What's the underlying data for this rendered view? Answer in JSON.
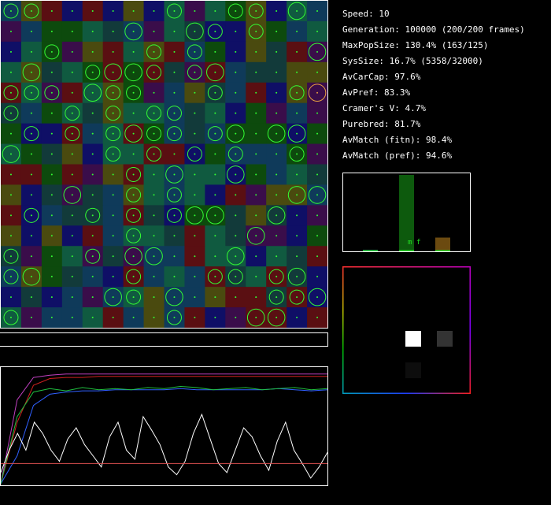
{
  "stats": [
    {
      "label": "Speed",
      "value": "10"
    },
    {
      "label": "Generation",
      "value": "100000 (200/200 frames)"
    },
    {
      "label": "MaxPopSize",
      "value": "130.4% (163/125)"
    },
    {
      "label": "SysSize",
      "value": "16.7% (5358/32000)"
    },
    {
      "label": "AvCarCap",
      "value": "97.6%"
    },
    {
      "label": "AvPref",
      "value": "83.3%"
    },
    {
      "label": "Cramer's V",
      "value": "4.7%"
    },
    {
      "label": "Purebred",
      "value": "81.7%"
    },
    {
      "label": "AvMatch (fitn)",
      "value": "98.4%"
    },
    {
      "label": "AvMatch (pref)",
      "value": "94.6%"
    }
  ],
  "histogram": {
    "label_m": "m",
    "label_f": "f",
    "bars": [
      {
        "category": 1,
        "value": 0.02,
        "color": "#223388"
      },
      {
        "category": 3,
        "value": 1.0,
        "color": "#0d5a0d"
      },
      {
        "category": 5,
        "value": 0.18,
        "color": "#6b4a10"
      }
    ],
    "accent_color": "#22dd22"
  },
  "matrix": {
    "cells": [
      {
        "row": 0,
        "col": 0,
        "value": 1.0
      },
      {
        "row": 0,
        "col": 1,
        "value": 0.2
      },
      {
        "row": 1,
        "col": 0,
        "value": 0.05
      }
    ]
  },
  "grid": {
    "rows": 16,
    "cols": 16,
    "palette": [
      "#0f0f66",
      "#3a0d4a",
      "#105a40",
      "#4a4a0f",
      "#5a0f12",
      "#0d4a0d",
      "#0f3a5a",
      "#123a3a"
    ],
    "cell_color_index": [
      [
        6,
        3,
        4,
        0,
        4,
        0,
        3,
        0,
        2,
        1,
        2,
        5,
        3,
        0,
        2,
        6
      ],
      [
        1,
        6,
        5,
        5,
        2,
        7,
        6,
        1,
        2,
        7,
        0,
        0,
        3,
        5,
        6,
        2
      ],
      [
        0,
        2,
        5,
        1,
        3,
        4,
        2,
        3,
        4,
        6,
        5,
        0,
        3,
        7,
        4,
        1
      ],
      [
        2,
        3,
        7,
        2,
        5,
        4,
        5,
        4,
        7,
        1,
        4,
        6,
        7,
        7,
        3,
        3
      ],
      [
        4,
        2,
        1,
        4,
        2,
        3,
        5,
        1,
        6,
        3,
        7,
        6,
        4,
        0,
        3,
        1
      ],
      [
        7,
        6,
        5,
        2,
        7,
        3,
        2,
        2,
        6,
        7,
        2,
        0,
        5,
        1,
        6,
        1
      ],
      [
        5,
        0,
        0,
        4,
        6,
        2,
        4,
        5,
        6,
        7,
        6,
        5,
        5,
        5,
        0,
        5
      ],
      [
        2,
        5,
        7,
        3,
        0,
        2,
        2,
        4,
        4,
        0,
        5,
        6,
        6,
        6,
        5,
        1
      ],
      [
        4,
        4,
        5,
        4,
        1,
        3,
        4,
        2,
        6,
        2,
        2,
        0,
        5,
        6,
        2,
        7
      ],
      [
        3,
        0,
        7,
        1,
        7,
        6,
        3,
        2,
        6,
        2,
        0,
        4,
        1,
        3,
        3,
        6
      ],
      [
        4,
        0,
        6,
        7,
        7,
        6,
        4,
        7,
        0,
        5,
        5,
        7,
        3,
        7,
        0,
        1
      ],
      [
        3,
        0,
        3,
        0,
        4,
        6,
        2,
        2,
        7,
        4,
        2,
        7,
        1,
        1,
        0,
        5
      ],
      [
        7,
        1,
        5,
        2,
        1,
        7,
        1,
        6,
        6,
        4,
        2,
        2,
        0,
        2,
        7,
        4
      ],
      [
        6,
        3,
        5,
        7,
        6,
        0,
        4,
        6,
        2,
        6,
        4,
        7,
        2,
        4,
        7,
        0
      ],
      [
        0,
        7,
        0,
        6,
        1,
        6,
        2,
        3,
        6,
        6,
        3,
        4,
        4,
        7,
        4,
        0
      ],
      [
        2,
        1,
        6,
        6,
        2,
        4,
        6,
        3,
        6,
        4,
        0,
        1,
        4,
        4,
        0,
        4
      ]
    ],
    "cell_value_index": [
      [
        1,
        1,
        0,
        0,
        0,
        0,
        0,
        0,
        1,
        0,
        0,
        1,
        1,
        0,
        2,
        0
      ],
      [
        0,
        0,
        0,
        0,
        0,
        0,
        2,
        0,
        0,
        2,
        1,
        0,
        1,
        0,
        0,
        0
      ],
      [
        0,
        0,
        1,
        0,
        0,
        0,
        0,
        1,
        0,
        1,
        0,
        0,
        0,
        0,
        0,
        2
      ],
      [
        0,
        2,
        0,
        0,
        1,
        2,
        2,
        1,
        0,
        1,
        2,
        0,
        0,
        0,
        0,
        0
      ],
      [
        1,
        1,
        1,
        0,
        2,
        1,
        1,
        0,
        0,
        0,
        1,
        0,
        0,
        0,
        1,
        2
      ],
      [
        1,
        0,
        0,
        1,
        0,
        1,
        0,
        1,
        1,
        0,
        0,
        0,
        0,
        0,
        0,
        0
      ],
      [
        0,
        1,
        0,
        1,
        0,
        1,
        2,
        1,
        1,
        0,
        1,
        2,
        0,
        2,
        2,
        0
      ],
      [
        2,
        0,
        0,
        0,
        0,
        1,
        0,
        1,
        0,
        1,
        0,
        1,
        0,
        0,
        1,
        0
      ],
      [
        0,
        0,
        0,
        0,
        0,
        0,
        1,
        0,
        2,
        0,
        0,
        2,
        0,
        0,
        0,
        0
      ],
      [
        0,
        0,
        0,
        2,
        0,
        0,
        1,
        0,
        1,
        0,
        0,
        0,
        0,
        0,
        2,
        2
      ],
      [
        0,
        1,
        0,
        0,
        1,
        0,
        1,
        0,
        1,
        2,
        2,
        0,
        0,
        2,
        0,
        0
      ],
      [
        0,
        0,
        0,
        0,
        0,
        0,
        1,
        0,
        0,
        0,
        0,
        0,
        2,
        0,
        0,
        0
      ],
      [
        1,
        0,
        0,
        0,
        1,
        0,
        2,
        2,
        0,
        0,
        0,
        2,
        0,
        0,
        0,
        0
      ],
      [
        1,
        2,
        0,
        0,
        0,
        0,
        1,
        0,
        0,
        0,
        1,
        1,
        0,
        1,
        2,
        0
      ],
      [
        0,
        0,
        0,
        0,
        0,
        2,
        1,
        0,
        2,
        0,
        0,
        0,
        0,
        1,
        1,
        2
      ],
      [
        1,
        0,
        0,
        0,
        0,
        0,
        0,
        0,
        1,
        0,
        0,
        0,
        2,
        2,
        0,
        0
      ]
    ],
    "highlight_cell": {
      "row": 4,
      "col": 15,
      "color": "#e8a040"
    }
  },
  "graph": {
    "series": [
      {
        "color": "#d02020",
        "values": [
          0.0,
          0.55,
          0.88,
          0.94,
          0.95,
          0.95,
          0.96,
          0.96,
          0.96,
          0.96,
          0.96,
          0.96,
          0.96,
          0.96,
          0.96,
          0.96,
          0.96,
          0.96,
          0.96,
          0.96,
          0.96
        ]
      },
      {
        "color": "#c040c0",
        "values": [
          0.0,
          0.75,
          0.95,
          0.97,
          0.98,
          0.98,
          0.98,
          0.98,
          0.98,
          0.98,
          0.98,
          0.98,
          0.98,
          0.98,
          0.98,
          0.98,
          0.98,
          0.98,
          0.98,
          0.98,
          0.98
        ]
      },
      {
        "color": "#3060ff",
        "values": [
          0.0,
          0.25,
          0.7,
          0.8,
          0.82,
          0.83,
          0.83,
          0.84,
          0.84,
          0.84,
          0.84,
          0.85,
          0.84,
          0.84,
          0.84,
          0.84,
          0.84,
          0.85,
          0.84,
          0.83,
          0.84
        ]
      },
      {
        "color": "#20c040",
        "values": [
          0.0,
          0.6,
          0.82,
          0.85,
          0.83,
          0.86,
          0.84,
          0.85,
          0.84,
          0.86,
          0.85,
          0.87,
          0.86,
          0.84,
          0.85,
          0.86,
          0.84,
          0.85,
          0.86,
          0.84,
          0.85
        ]
      },
      {
        "color": "#ffffff",
        "values": [
          0.1,
          0.3,
          0.45,
          0.3,
          0.55,
          0.45,
          0.3,
          0.2,
          0.4,
          0.5,
          0.35,
          0.25,
          0.15,
          0.42,
          0.55,
          0.3,
          0.22,
          0.6,
          0.48,
          0.35,
          0.15,
          0.08,
          0.2,
          0.45,
          0.62,
          0.4,
          0.18,
          0.1,
          0.3,
          0.5,
          0.42,
          0.25,
          0.12,
          0.38,
          0.55,
          0.3,
          0.18,
          0.05,
          0.15,
          0.28
        ]
      },
      {
        "color": "#e05050",
        "values": [
          0.18,
          0.18,
          0.18,
          0.18,
          0.18,
          0.18,
          0.18,
          0.18,
          0.18,
          0.18,
          0.18,
          0.18,
          0.18,
          0.18,
          0.18,
          0.18,
          0.18,
          0.18,
          0.18,
          0.18,
          0.18
        ]
      }
    ]
  }
}
